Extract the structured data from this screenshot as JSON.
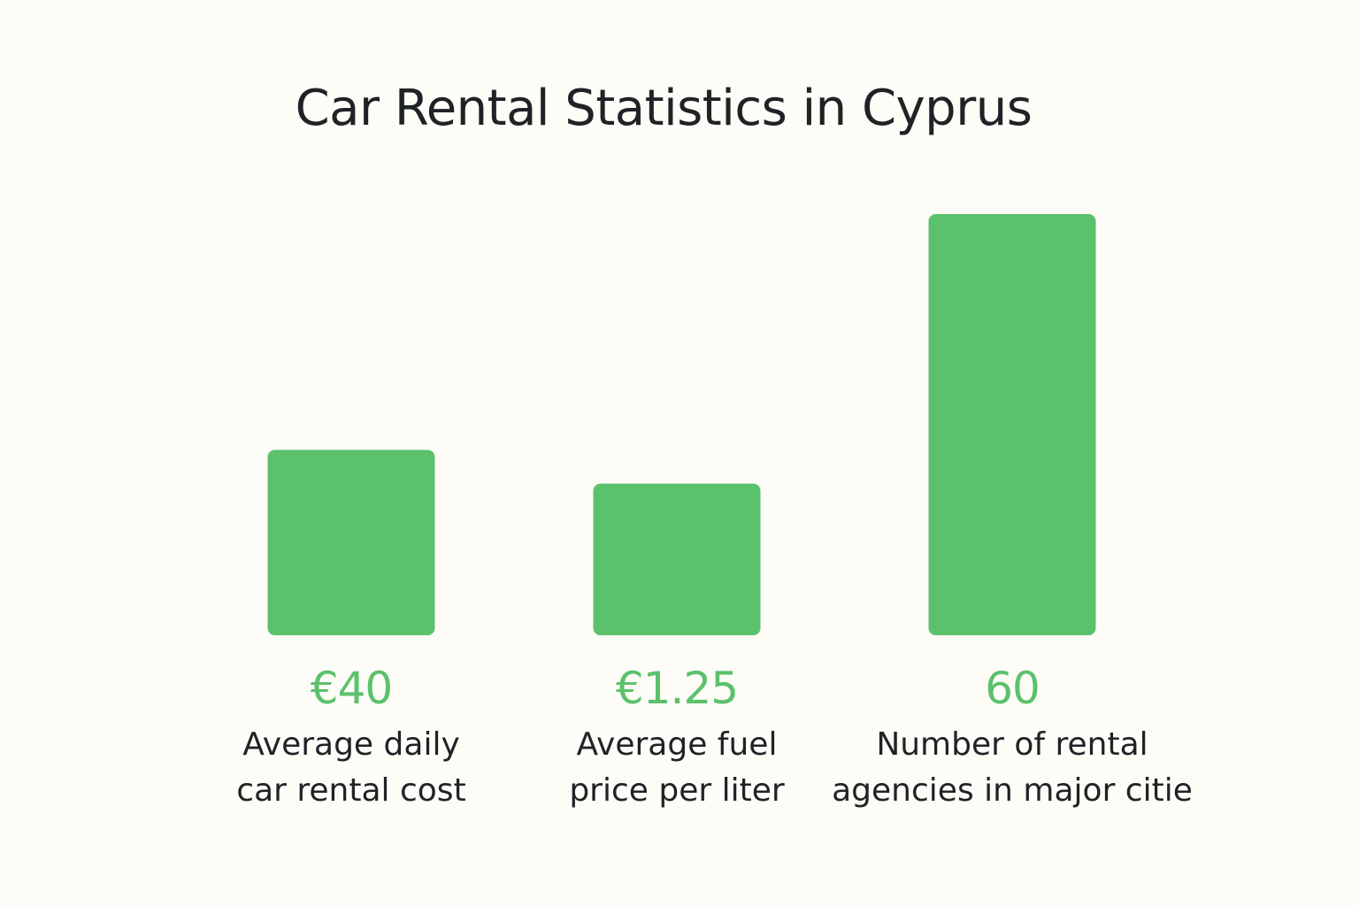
{
  "chart_data": {
    "type": "bar",
    "title": "Car Rental Statistics in Cyprus",
    "categories": [
      [
        "Average daily",
        "car rental cost"
      ],
      [
        "Average fuel",
        "price per liter"
      ],
      [
        "Number of rental",
        "agencies in major citie"
      ]
    ],
    "value_labels": [
      "€40",
      "€1.25",
      "60"
    ],
    "values": [
      40,
      1.25,
      60
    ],
    "bar_heights_relative": [
      0.44,
      0.36,
      1.0
    ],
    "bar_color": "#5cc16c",
    "value_label_color": "#5cc16c",
    "axes_visible": false,
    "grid": false,
    "legend": "none"
  }
}
